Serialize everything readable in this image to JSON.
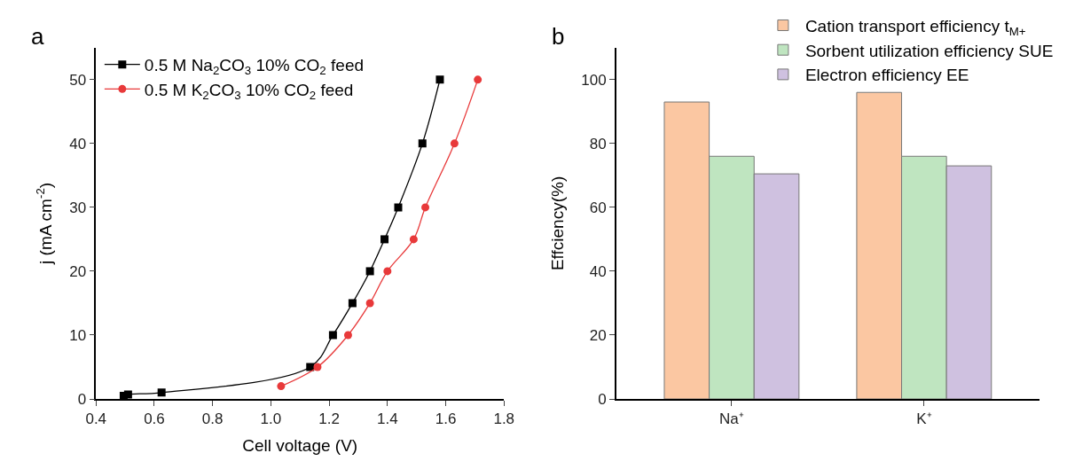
{
  "chart_data": [
    {
      "type": "line",
      "xlabel": "Cell voltage (V)",
      "ylabel": "j (mA cm$^{-2}$)",
      "annotations": [
        "a"
      ],
      "xlim": [
        0.4,
        1.8
      ],
      "xticks": [
        0.4,
        0.6,
        0.8,
        {
          "value": 1.0,
          "label": "1.0"
        },
        1.2,
        1.4,
        1.6,
        1.8
      ],
      "ylim": [
        0,
        55
      ],
      "yticks": [
        0,
        10,
        20,
        30,
        40,
        50
      ],
      "legend": "top left",
      "series": [
        {
          "name": "0.5 M Na$_{2}$CO$_{3}$ 10% CO$_{2}$ feed",
          "color": "#000000",
          "marker": "square",
          "x": [
            0.495,
            0.51,
            0.625,
            1.135,
            1.213,
            1.28,
            1.34,
            1.39,
            1.437,
            1.52,
            1.58
          ],
          "values": [
            0.5,
            0.7,
            1,
            5,
            10,
            15,
            20,
            25,
            30,
            40,
            50
          ]
        },
        {
          "name": "0.5 M K$_{2}$CO$_{3}$ 10% CO$_{2}$ feed",
          "color": "#e8393a",
          "marker": "circle",
          "x": [
            1.035,
            1.16,
            1.265,
            1.34,
            1.4,
            1.49,
            1.53,
            1.63,
            1.71
          ],
          "values": [
            2,
            5,
            10,
            15,
            20,
            25,
            30,
            40,
            50
          ]
        }
      ]
    },
    {
      "type": "bar",
      "ylabel": "Effciency(%)",
      "annotations": [
        "b"
      ],
      "categories": [
        "Na⁺",
        "K⁺"
      ],
      "ylim": [
        0,
        110
      ],
      "yticks": [
        0,
        20,
        40,
        60,
        80,
        100
      ],
      "legend": "top",
      "series": [
        {
          "name": "Cation transport efficiency t$_{M+}$",
          "color": "#fbc7a2",
          "values": [
            93,
            96
          ]
        },
        {
          "name": "Sorbent utilization efficiency SUE",
          "color": "#bfe5c0",
          "values": [
            76,
            76
          ]
        },
        {
          "name": "Electron efficiency EE",
          "color": "#cfc1e0",
          "values": [
            70.5,
            73
          ]
        }
      ]
    }
  ]
}
